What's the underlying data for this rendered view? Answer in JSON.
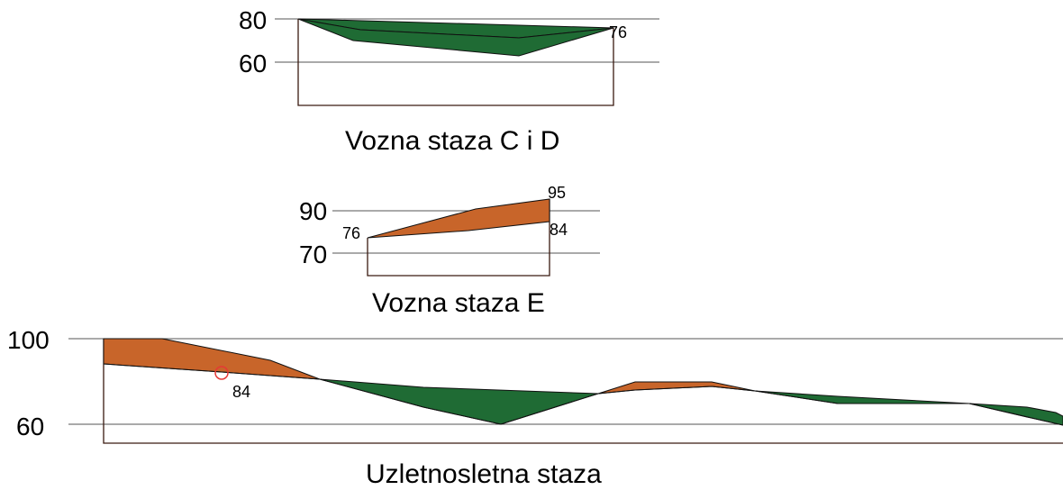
{
  "profiles": [
    {
      "title": "Vozna staza C i D",
      "axis_labels": [
        "80",
        "60"
      ],
      "point_labels": [
        "76"
      ]
    },
    {
      "title": "Vozna staza E",
      "axis_labels": [
        "90",
        "70"
      ],
      "point_labels": [
        "76",
        "95",
        "84"
      ]
    },
    {
      "title": "Uzletnosletna staza",
      "axis_labels": [
        "100",
        "60"
      ],
      "point_labels": [
        "84"
      ]
    }
  ],
  "colors": {
    "cut": "#1f6b34",
    "fill": "#c8652a",
    "marker": "#e53935"
  }
}
